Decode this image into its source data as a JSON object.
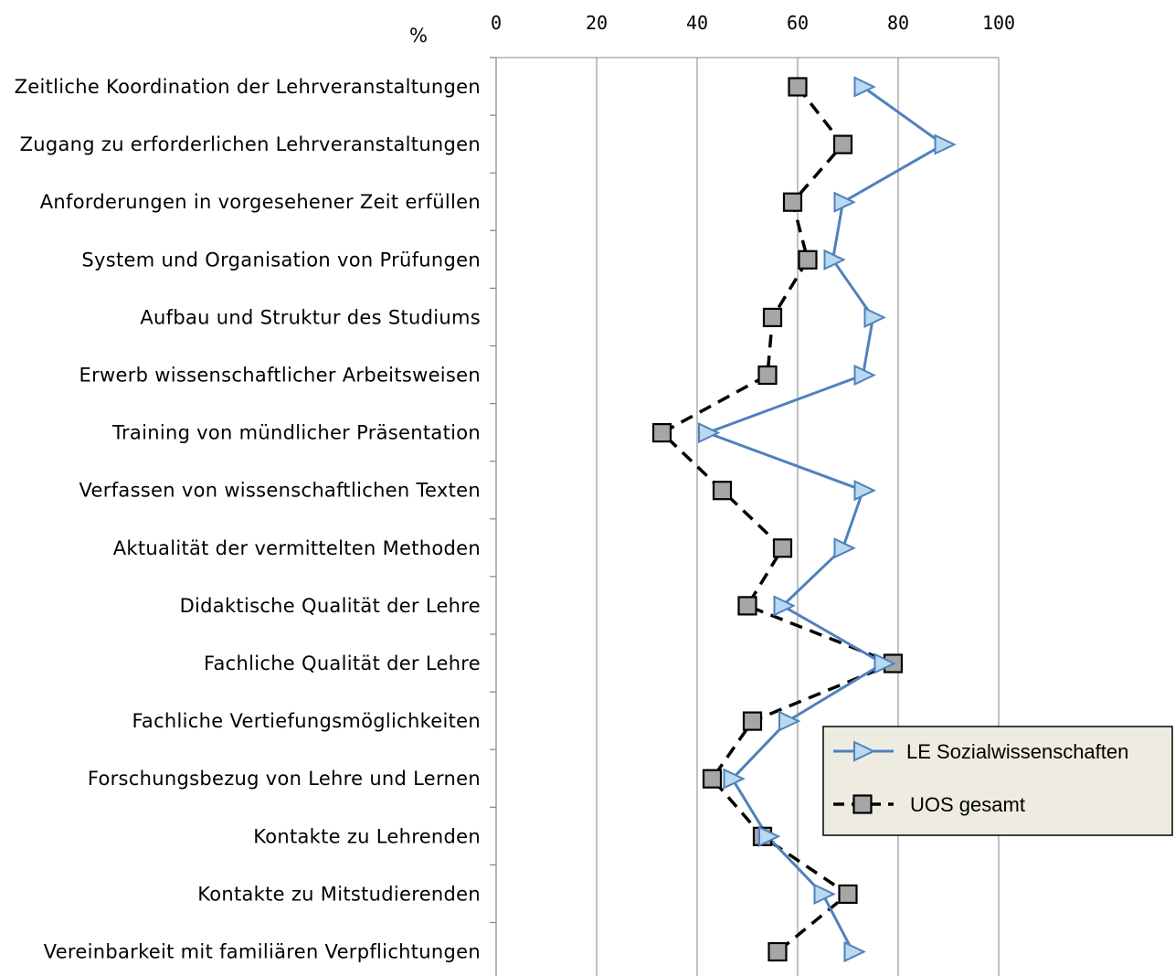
{
  "chart_data": {
    "type": "line",
    "orientation": "horizontal",
    "unit_label": "%",
    "xlim": [
      0,
      100
    ],
    "x_ticks": [
      "0",
      "20",
      "40",
      "60",
      "80",
      "100"
    ],
    "grid": true,
    "legend_position": "right",
    "categories": [
      "Zeitliche Koordination der Lehrveranstaltungen",
      "Zugang zu erforderlichen Lehrveranstaltungen",
      "Anforderungen in vorgesehener Zeit erfüllen",
      "System und Organisation von Prüfungen",
      "Aufbau und Struktur des Studiums",
      "Erwerb wissenschaftlicher Arbeitsweisen",
      "Training von mündlicher Präsentation",
      "Verfassen von wissenschaftlichen Texten",
      "Aktualität der vermittelten Methoden",
      "Didaktische Qualität der Lehre",
      "Fachliche Qualität der Lehre",
      "Fachliche Vertiefungsmöglichkeiten",
      "Forschungsbezug von Lehre und Lernen",
      "Kontakte zu Lehrenden",
      "Kontakte zu Mitstudierenden",
      "Vereinbarkeit mit familiären Verpflichtungen"
    ],
    "series": [
      {
        "name": "LE Sozialwissenschaften",
        "color": "#4f81bd",
        "marker_fill": "#b9d9f0",
        "marker": "triangle-right",
        "line_style": "solid",
        "values": [
          73,
          89,
          69,
          67,
          75,
          73,
          42,
          73,
          69,
          57,
          77,
          58,
          47,
          54,
          65,
          71
        ]
      },
      {
        "name": "UOS gesamt",
        "color": "#000000",
        "marker_fill": "#a6a6a6",
        "marker": "square",
        "line_style": "dashed",
        "values": [
          60,
          69,
          59,
          62,
          55,
          54,
          33,
          45,
          57,
          50,
          79,
          51,
          43,
          53,
          70,
          56
        ]
      }
    ]
  }
}
